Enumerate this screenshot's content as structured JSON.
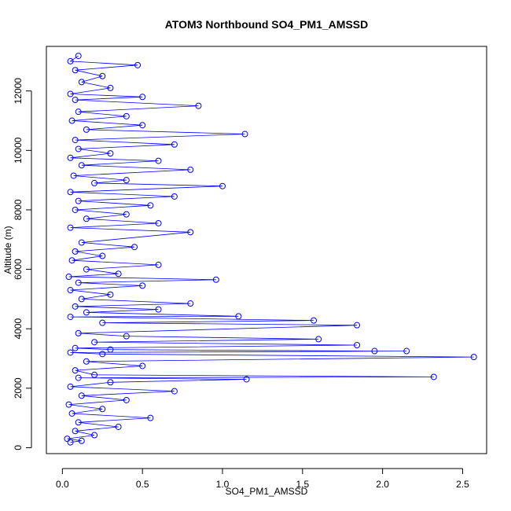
{
  "chart_data": {
    "type": "line",
    "title": "ATOM3 Northbound SO4_PM1_AMSSD",
    "xlabel": "SO4_PM1_AMSSD",
    "ylabel": "Altitude (m)",
    "xlim": [
      -0.1,
      2.65
    ],
    "ylim": [
      -200,
      13500
    ],
    "x_ticks": [
      0.0,
      0.5,
      1.0,
      1.5,
      2.0,
      2.5
    ],
    "x_tick_labels": [
      "0.0",
      "0.5",
      "1.0",
      "1.5",
      "2.0",
      "2.5"
    ],
    "y_ticks": [
      0,
      2000,
      4000,
      6000,
      8000,
      10000,
      12000
    ],
    "y_tick_labels": [
      "0",
      "2000",
      "4000",
      "6000",
      "8000",
      "10000",
      "12000"
    ],
    "grid": false,
    "marker": "open-circle",
    "series_color": "#0000FF",
    "series": [
      {
        "points": [
          [
            0.05,
            180
          ],
          [
            0.12,
            230
          ],
          [
            0.03,
            300
          ],
          [
            0.2,
            420
          ],
          [
            0.08,
            560
          ],
          [
            0.35,
            700
          ],
          [
            0.1,
            850
          ],
          [
            0.55,
            1000
          ],
          [
            0.06,
            1150
          ],
          [
            0.25,
            1300
          ],
          [
            0.04,
            1450
          ],
          [
            0.4,
            1600
          ],
          [
            0.12,
            1750
          ],
          [
            0.7,
            1900
          ],
          [
            0.05,
            2050
          ],
          [
            0.3,
            2200
          ],
          [
            1.15,
            2300
          ],
          [
            0.1,
            2350
          ],
          [
            2.32,
            2380
          ],
          [
            0.2,
            2450
          ],
          [
            0.08,
            2600
          ],
          [
            0.5,
            2750
          ],
          [
            0.15,
            2900
          ],
          [
            2.57,
            3050
          ],
          [
            0.25,
            3150
          ],
          [
            0.05,
            3200
          ],
          [
            2.15,
            3250
          ],
          [
            1.95,
            3250
          ],
          [
            0.3,
            3300
          ],
          [
            0.08,
            3350
          ],
          [
            1.84,
            3450
          ],
          [
            0.2,
            3550
          ],
          [
            1.6,
            3650
          ],
          [
            0.4,
            3750
          ],
          [
            0.1,
            3850
          ],
          [
            1.84,
            4120
          ],
          [
            0.25,
            4200
          ],
          [
            1.57,
            4280
          ],
          [
            0.05,
            4400
          ],
          [
            1.1,
            4420
          ],
          [
            0.15,
            4550
          ],
          [
            0.6,
            4650
          ],
          [
            0.08,
            4750
          ],
          [
            0.8,
            4850
          ],
          [
            0.12,
            5000
          ],
          [
            0.3,
            5150
          ],
          [
            0.05,
            5300
          ],
          [
            0.5,
            5450
          ],
          [
            0.1,
            5550
          ],
          [
            0.96,
            5650
          ],
          [
            0.04,
            5750
          ],
          [
            0.35,
            5850
          ],
          [
            0.15,
            6000
          ],
          [
            0.6,
            6150
          ],
          [
            0.06,
            6300
          ],
          [
            0.25,
            6450
          ],
          [
            0.08,
            6600
          ],
          [
            0.45,
            6750
          ],
          [
            0.12,
            6900
          ],
          [
            0.8,
            7250
          ],
          [
            0.05,
            7400
          ],
          [
            0.6,
            7550
          ],
          [
            0.15,
            7700
          ],
          [
            0.4,
            7850
          ],
          [
            0.08,
            8000
          ],
          [
            0.55,
            8150
          ],
          [
            0.1,
            8300
          ],
          [
            0.7,
            8450
          ],
          [
            0.05,
            8600
          ],
          [
            1.0,
            8800
          ],
          [
            0.2,
            8900
          ],
          [
            0.4,
            9000
          ],
          [
            0.07,
            9150
          ],
          [
            0.8,
            9350
          ],
          [
            0.12,
            9500
          ],
          [
            0.6,
            9650
          ],
          [
            0.05,
            9750
          ],
          [
            0.3,
            9900
          ],
          [
            0.1,
            10050
          ],
          [
            0.7,
            10200
          ],
          [
            0.08,
            10350
          ],
          [
            1.14,
            10550
          ],
          [
            0.15,
            10700
          ],
          [
            0.5,
            10850
          ],
          [
            0.06,
            11000
          ],
          [
            0.4,
            11150
          ],
          [
            0.1,
            11300
          ],
          [
            0.85,
            11500
          ],
          [
            0.08,
            11700
          ],
          [
            0.5,
            11800
          ],
          [
            0.05,
            11900
          ],
          [
            0.3,
            12100
          ],
          [
            0.12,
            12300
          ],
          [
            0.25,
            12500
          ],
          [
            0.08,
            12700
          ],
          [
            0.47,
            12870
          ],
          [
            0.05,
            13000
          ],
          [
            0.1,
            13180
          ]
        ]
      }
    ]
  }
}
